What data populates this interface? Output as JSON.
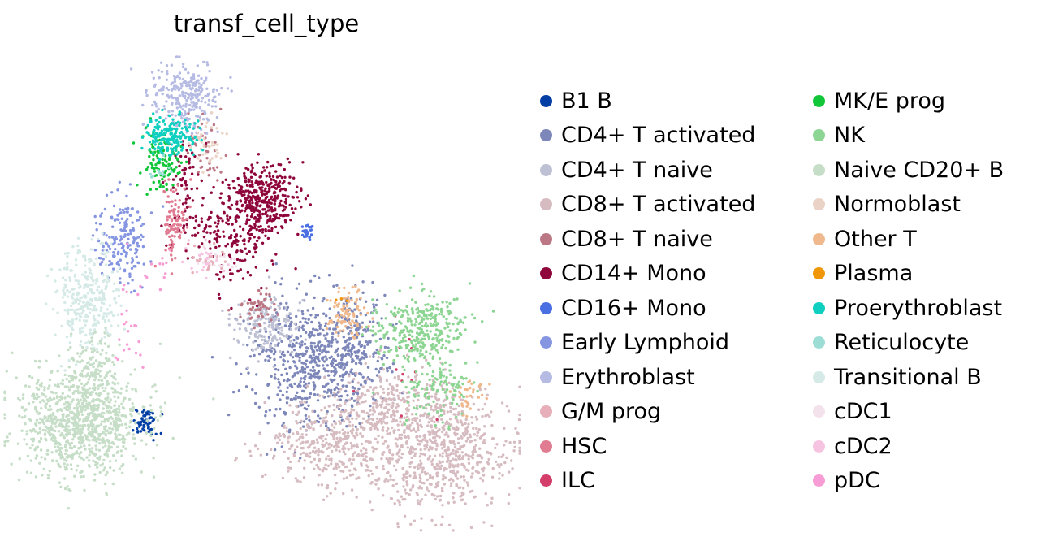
{
  "chart_data": {
    "type": "scatter",
    "title": "transf_cell_type",
    "xlabel": "",
    "ylabel": "",
    "grid": false,
    "axes_visible": false,
    "legend_placement": "right",
    "legend_columns": 2,
    "series": [
      {
        "name": "B1 B",
        "color": "#023fa5",
        "clusters": [
          {
            "x": 180,
            "y": 518,
            "sx": 9,
            "sy": 8,
            "n": 60
          }
        ]
      },
      {
        "name": "CD4+ T activated",
        "color": "#7d87b9",
        "clusters": [
          {
            "x": 385,
            "y": 445,
            "sx": 38,
            "sy": 40,
            "n": 620
          },
          {
            "x": 440,
            "y": 420,
            "sx": 18,
            "sy": 28,
            "n": 140
          }
        ]
      },
      {
        "name": "CD4+ T naive",
        "color": "#bec1d4",
        "clusters": [
          {
            "x": 330,
            "y": 402,
            "sx": 22,
            "sy": 18,
            "n": 170
          }
        ]
      },
      {
        "name": "CD8+ T activated",
        "color": "#d6bcc0",
        "clusters": [
          {
            "x": 410,
            "y": 545,
            "sx": 40,
            "sy": 25,
            "n": 380
          },
          {
            "x": 540,
            "y": 555,
            "sx": 45,
            "sy": 38,
            "n": 700
          },
          {
            "x": 480,
            "y": 500,
            "sx": 35,
            "sy": 25,
            "n": 250
          }
        ]
      },
      {
        "name": "CD8+ T naive",
        "color": "#bb7784",
        "clusters": [
          {
            "x": 318,
            "y": 378,
            "sx": 12,
            "sy": 10,
            "n": 50
          },
          {
            "x": 250,
            "y": 180,
            "sx": 12,
            "sy": 25,
            "n": 40
          }
        ]
      },
      {
        "name": "CD14+ Mono",
        "color": "#8e063b",
        "clusters": [
          {
            "x": 322,
            "y": 245,
            "sx": 22,
            "sy": 20,
            "n": 380
          },
          {
            "x": 275,
            "y": 290,
            "sx": 28,
            "sy": 18,
            "n": 130
          },
          {
            "x": 300,
            "y": 330,
            "sx": 20,
            "sy": 22,
            "n": 40
          },
          {
            "x": 230,
            "y": 220,
            "sx": 10,
            "sy": 25,
            "n": 60
          }
        ]
      },
      {
        "name": "CD16+ Mono",
        "color": "#4a6fe3",
        "clusters": [
          {
            "x": 377,
            "y": 285,
            "sx": 4,
            "sy": 5,
            "n": 30
          }
        ]
      },
      {
        "name": "Early Lymphoid",
        "color": "#8595e1",
        "clusters": [
          {
            "x": 152,
            "y": 292,
            "sx": 16,
            "sy": 28,
            "n": 180
          }
        ]
      },
      {
        "name": "Erythroblast",
        "color": "#b5bbe3",
        "clusters": [
          {
            "x": 228,
            "y": 118,
            "sx": 20,
            "sy": 22,
            "n": 260
          }
        ]
      },
      {
        "name": "G/M prog",
        "color": "#e6afb9",
        "clusters": [
          {
            "x": 260,
            "y": 320,
            "sx": 12,
            "sy": 8,
            "n": 25
          }
        ]
      },
      {
        "name": "HSC",
        "color": "#e07b91",
        "clusters": [
          {
            "x": 215,
            "y": 275,
            "sx": 7,
            "sy": 25,
            "n": 100
          }
        ]
      },
      {
        "name": "ILC",
        "color": "#d33f6a",
        "clusters": [
          {
            "x": 505,
            "y": 470,
            "sx": 30,
            "sy": 30,
            "n": 12
          }
        ]
      },
      {
        "name": "MK/E prog",
        "color": "#11c638",
        "clusters": [
          {
            "x": 198,
            "y": 200,
            "sx": 12,
            "sy": 18,
            "n": 110
          }
        ]
      },
      {
        "name": "NK",
        "color": "#8dd593",
        "clusters": [
          {
            "x": 515,
            "y": 405,
            "sx": 28,
            "sy": 22,
            "n": 330
          },
          {
            "x": 540,
            "y": 480,
            "sx": 20,
            "sy": 20,
            "n": 120
          }
        ]
      },
      {
        "name": "Naive CD20+ B",
        "color": "#c6dec7",
        "clusters": [
          {
            "x": 100,
            "y": 520,
            "sx": 38,
            "sy": 32,
            "n": 950
          },
          {
            "x": 115,
            "y": 450,
            "sx": 14,
            "sy": 22,
            "n": 120
          }
        ]
      },
      {
        "name": "Normoblast",
        "color": "#ead3c6",
        "clusters": [
          {
            "x": 255,
            "y": 175,
            "sx": 10,
            "sy": 15,
            "n": 40
          }
        ]
      },
      {
        "name": "Other T",
        "color": "#f0b98d",
        "clusters": [
          {
            "x": 428,
            "y": 385,
            "sx": 12,
            "sy": 14,
            "n": 90
          },
          {
            "x": 580,
            "y": 490,
            "sx": 10,
            "sy": 12,
            "n": 30
          }
        ]
      },
      {
        "name": "Plasma",
        "color": "#ef9708",
        "clusters": [
          {
            "x": 420,
            "y": 370,
            "sx": 5,
            "sy": 5,
            "n": 3
          }
        ]
      },
      {
        "name": "Proerythroblast",
        "color": "#0fcfc0",
        "clusters": [
          {
            "x": 210,
            "y": 168,
            "sx": 16,
            "sy": 12,
            "n": 190
          }
        ]
      },
      {
        "name": "Reticulocyte",
        "color": "#9cded6",
        "clusters": [
          {
            "x": 200,
            "y": 215,
            "sx": 8,
            "sy": 8,
            "n": 12
          }
        ]
      },
      {
        "name": "Transitional B",
        "color": "#d5eae7",
        "clusters": [
          {
            "x": 105,
            "y": 365,
            "sx": 20,
            "sy": 30,
            "n": 320
          }
        ]
      },
      {
        "name": "cDC1",
        "color": "#f3e1eb",
        "clusters": [
          {
            "x": 265,
            "y": 320,
            "sx": 15,
            "sy": 10,
            "n": 20
          }
        ]
      },
      {
        "name": "cDC2",
        "color": "#f6c4e1",
        "clusters": [
          {
            "x": 255,
            "y": 320,
            "sx": 14,
            "sy": 10,
            "n": 25
          }
        ]
      },
      {
        "name": "pDC",
        "color": "#f79cd4",
        "clusters": [
          {
            "x": 160,
            "y": 400,
            "sx": 10,
            "sy": 30,
            "n": 25
          },
          {
            "x": 200,
            "y": 330,
            "sx": 8,
            "sy": 15,
            "n": 10
          }
        ]
      }
    ]
  }
}
